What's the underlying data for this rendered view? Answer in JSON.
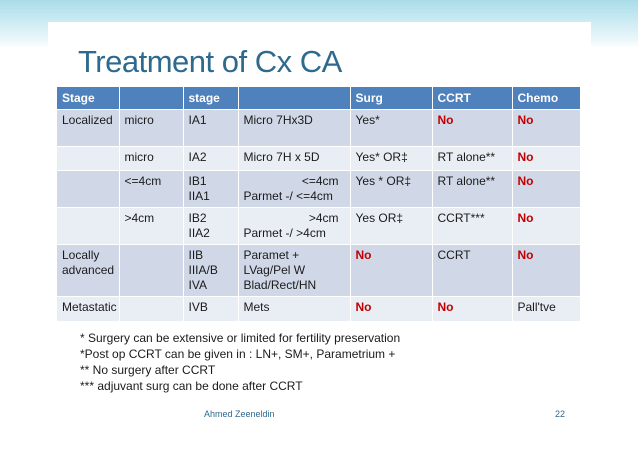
{
  "slide": {
    "title": "Treatment of Cx CA",
    "footer_author": "Ahmed Zeeneldin",
    "page_number": "22"
  },
  "table": {
    "headers": [
      "Stage",
      "",
      "stage",
      "",
      "Surg",
      "CCRT",
      "Chemo"
    ],
    "rows": [
      [
        "Localized",
        "micro",
        "IA1",
        "Micro 7Hx3D",
        "Yes*",
        "No",
        "No"
      ],
      [
        "",
        "micro",
        "IA2",
        "Micro 7H x 5D",
        "Yes* OR‡",
        "RT alone**",
        "No"
      ],
      [
        "",
        "<=4cm",
        "IB1\nIIA1",
        "<=4cm\nParmet -/ <=4cm",
        "Yes * OR‡",
        "RT alone**",
        "No"
      ],
      [
        "",
        ">4cm",
        "IB2\nIIA2",
        ">4cm\nParmet -/ >4cm",
        "Yes OR‡",
        "CCRT***",
        "No"
      ],
      [
        "Locally\nadvanced",
        "",
        "IIB\nIIIA/B\nIVA",
        "Paramet +\nLVag/Pel W\nBlad/Rect/HN",
        "No",
        "CCRT",
        "No"
      ],
      [
        "Metastatic",
        "",
        "IVB",
        "Mets",
        "No",
        "No",
        "Pall'tve"
      ]
    ]
  },
  "notes": [
    "* Surgery can be extensive or limited for fertility preservation",
    "*Post op CCRT can be given in : LN+, SM+, Parametrium +",
    "** No surgery after CCRT",
    "*** adjuvant surg can be done after CCRT"
  ],
  "colors": {
    "header_bg": "#4f81bd",
    "row_odd": "#d0d8e8",
    "row_even": "#e9edf4",
    "emphasis_red": "#c00000",
    "title": "#2e6a8e"
  }
}
